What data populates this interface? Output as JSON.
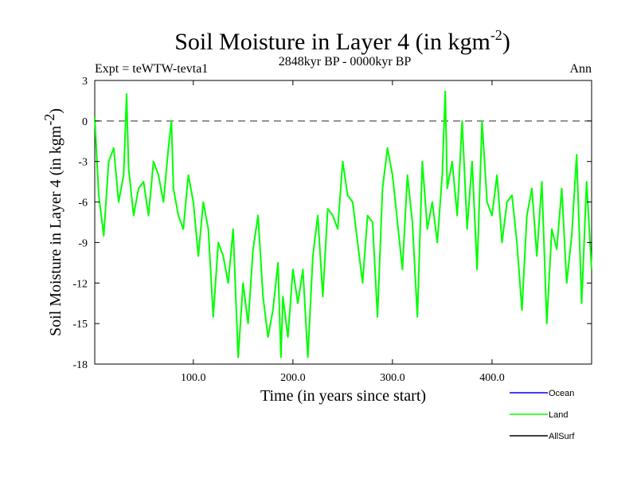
{
  "chart_data": {
    "type": "line",
    "title": "Soil Moisture in Layer 4 (in kgm",
    "title_sup": "-2",
    "title_close": ")",
    "subtitle": "2848kyr BP - 0000kyr BP",
    "left_label": "Expt = teWTW-tevta1",
    "right_label": "Ann",
    "xlabel": "Time (in years since start)",
    "ylabel": "Soil Moisture in Layer 4 (in kgm",
    "ylabel_sup": "-2",
    "ylabel_close": ")",
    "xlim": [
      1,
      500
    ],
    "ylim": [
      -18,
      3
    ],
    "xticks": [
      100,
      200,
      300,
      400
    ],
    "xtick_labels": [
      "100.0",
      "200.0",
      "300.0",
      "400.0"
    ],
    "yticks": [
      3,
      0,
      -3,
      -6,
      -9,
      -12,
      -15,
      -18
    ],
    "ytick_labels": [
      "3",
      "0",
      "-3",
      "-6",
      "-9",
      "-12",
      "-15",
      "-18"
    ],
    "reference_line": 0,
    "legend": [
      {
        "name": "Ocean",
        "color": "#0000ff"
      },
      {
        "name": "Land",
        "color": "#00ff00"
      },
      {
        "name": "AllSurf",
        "color": "#000000"
      }
    ],
    "series": [
      {
        "name": "Land",
        "color": "#00ff00",
        "x": [
          1,
          5,
          10,
          15,
          20,
          25,
          30,
          33,
          35,
          40,
          45,
          50,
          55,
          60,
          65,
          70,
          75,
          78,
          80,
          85,
          90,
          95,
          100,
          105,
          110,
          115,
          120,
          125,
          130,
          135,
          140,
          145,
          150,
          155,
          160,
          165,
          170,
          175,
          180,
          185,
          188,
          190,
          195,
          200,
          205,
          210,
          215,
          220,
          225,
          230,
          235,
          240,
          245,
          250,
          255,
          260,
          265,
          270,
          275,
          280,
          285,
          290,
          295,
          300,
          305,
          310,
          315,
          320,
          325,
          330,
          335,
          340,
          345,
          350,
          353,
          355,
          360,
          365,
          370,
          375,
          380,
          385,
          390,
          395,
          400,
          405,
          410,
          415,
          420,
          425,
          430,
          435,
          440,
          445,
          450,
          455,
          460,
          465,
          470,
          475,
          480,
          485,
          490,
          495,
          500
        ],
        "y": [
          0.3,
          -5.5,
          -8.5,
          -3,
          -2,
          -6,
          -4,
          2,
          -3.5,
          -7,
          -5,
          -4.5,
          -7,
          -3,
          -4,
          -6,
          -2,
          0,
          -5,
          -7,
          -8,
          -4,
          -6,
          -10,
          -6,
          -8,
          -14.5,
          -9,
          -10,
          -12,
          -8,
          -17.5,
          -12,
          -15,
          -9.5,
          -7,
          -13,
          -16,
          -14,
          -10.5,
          -17.5,
          -13,
          -16,
          -11,
          -13.5,
          -11,
          -17.5,
          -10,
          -7,
          -13,
          -6.5,
          -7,
          -8,
          -3,
          -5.5,
          -6,
          -9,
          -12,
          -7,
          -7.5,
          -14.5,
          -5,
          -2,
          -4,
          -7.5,
          -11,
          -4,
          -7.5,
          -14.5,
          -3,
          -8,
          -6,
          -9,
          -4,
          2.2,
          -5,
          -3,
          -7,
          0,
          -8,
          -3,
          -11,
          0,
          -6,
          -7,
          -4,
          -9,
          -6,
          -5.5,
          -9,
          -14,
          -7,
          -5,
          -10,
          -4.5,
          -15,
          -8,
          -9.5,
          -5,
          -12,
          -8.5,
          -2.5,
          -13.5,
          -4.5,
          -11
        ]
      }
    ]
  }
}
